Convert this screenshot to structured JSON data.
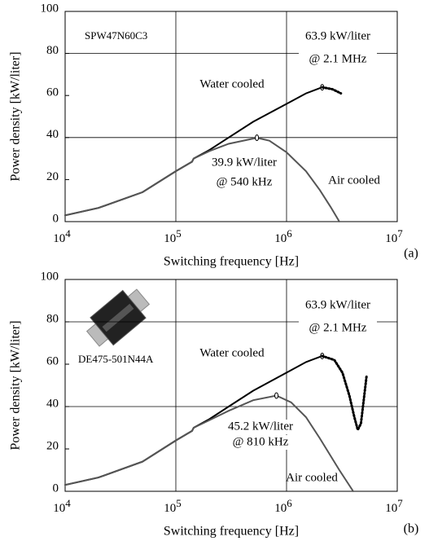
{
  "chart_data": [
    {
      "type": "line",
      "panel_label": "(a)",
      "device": "SPW47N60C3",
      "xlabel": "Switching frequency [Hz]",
      "ylabel": "Power density [kW/liter]",
      "xscale": "log",
      "xlim": [
        10000,
        10000000
      ],
      "xticks": [
        {
          "value": 10000,
          "label": "10",
          "exponent": "4"
        },
        {
          "value": 100000,
          "label": "10",
          "exponent": "5"
        },
        {
          "value": 1000000,
          "label": "10",
          "exponent": "6"
        },
        {
          "value": 10000000,
          "label": "10",
          "exponent": "7"
        }
      ],
      "ylim": [
        0,
        100
      ],
      "yticks": [
        0,
        20,
        40,
        60,
        80,
        100
      ],
      "ygrid": [
        40,
        80
      ],
      "series": [
        {
          "name": "Water cooled",
          "color": "#000000",
          "line_style": "solid",
          "peak_marker": true,
          "x": [
            10000,
            20000,
            50000,
            100000,
            140000,
            145000,
            200000,
            300000,
            500000,
            1000000,
            1500000,
            2100000
          ],
          "values": [
            3,
            6.5,
            14,
            24,
            28.5,
            30,
            34,
            40,
            47.5,
            56,
            61,
            63.9
          ]
        },
        {
          "color": "#000000",
          "line_style": "dotted",
          "x": [
            2100000,
            2600000,
            3100000
          ],
          "values": [
            63.9,
            63,
            61
          ]
        },
        {
          "name": "Air cooled",
          "color": "#555555",
          "line_style": "solid",
          "peak_marker": true,
          "x": [
            10000,
            20000,
            50000,
            100000,
            140000,
            145000,
            200000,
            300000,
            540000,
            700000,
            1000000,
            1500000,
            2000000,
            2500000,
            3000000
          ],
          "values": [
            3,
            6.5,
            14,
            24,
            28.5,
            30,
            33.5,
            37,
            39.9,
            38.5,
            33,
            24,
            15,
            7,
            0
          ]
        }
      ],
      "annotations": [
        "63.9 kW/liter",
        "@ 2.1 MHz",
        "39.9 kW/liter",
        "@ 540 kHz"
      ]
    },
    {
      "type": "line",
      "panel_label": "(b)",
      "device": "DE475-501N44A",
      "xlabel": "Switching frequency [Hz]",
      "ylabel": "Power density [kW/liter]",
      "xscale": "log",
      "xlim": [
        10000,
        10000000
      ],
      "xticks": [
        {
          "value": 10000,
          "label": "10",
          "exponent": "4"
        },
        {
          "value": 100000,
          "label": "10",
          "exponent": "5"
        },
        {
          "value": 1000000,
          "label": "10",
          "exponent": "6"
        },
        {
          "value": 10000000,
          "label": "10",
          "exponent": "7"
        }
      ],
      "ylim": [
        0,
        100
      ],
      "yticks": [
        0,
        20,
        40,
        60,
        80,
        100
      ],
      "ygrid": [
        40,
        80
      ],
      "series": [
        {
          "name": "Water cooled",
          "color": "#000000",
          "line_style": "solid",
          "peak_marker": true,
          "x": [
            10000,
            20000,
            50000,
            100000,
            140000,
            145000,
            200000,
            300000,
            500000,
            1000000,
            1500000,
            2100000
          ],
          "values": [
            3,
            6.5,
            14,
            24,
            28.5,
            30,
            34,
            40,
            47.5,
            56,
            61,
            63.9
          ]
        },
        {
          "color": "#000000",
          "line_style": "dotted",
          "x": [
            2100000,
            2700000,
            3200000,
            3700000,
            4100000,
            4400000,
            4700000,
            5000000,
            5300000
          ],
          "values": [
            63.9,
            62,
            56,
            45,
            35,
            29,
            32,
            44,
            55
          ]
        },
        {
          "name": "Air cooled",
          "color": "#555555",
          "line_style": "solid",
          "peak_marker": true,
          "x": [
            10000,
            20000,
            50000,
            100000,
            140000,
            145000,
            200000,
            300000,
            500000,
            810000,
            1100000,
            1500000,
            2000000,
            3000000,
            4000000
          ],
          "values": [
            3,
            6.5,
            14,
            24,
            28.5,
            30,
            33.5,
            38,
            43,
            45.2,
            42,
            35,
            25,
            10,
            0
          ]
        }
      ],
      "annotations": [
        "63.9 kW/liter",
        "@ 2.1 MHz",
        "45.2 kW/liter",
        "@ 810 kHz"
      ]
    }
  ]
}
